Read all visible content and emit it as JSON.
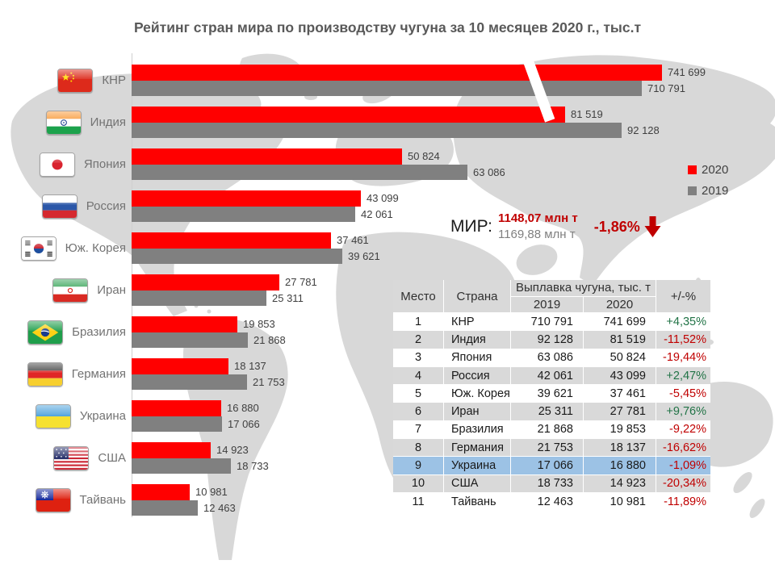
{
  "title": "Рейтинг стран мира по производству чугуна за 10 месяцев 2020 г., тыс.т",
  "colors": {
    "bar_2020": "#ff0000",
    "bar_2019": "#808080",
    "positive": "#217346",
    "negative": "#c00000",
    "highlight_row": "#9cc2e5",
    "map": "#d8d8d8"
  },
  "legend": {
    "items": [
      {
        "label": "2020",
        "color": "#ff0000"
      },
      {
        "label": "2019",
        "color": "#808080"
      }
    ]
  },
  "world": {
    "label": "МИР:",
    "v2020": "1148,07 млн т",
    "v2019": "1169,88 млн т",
    "change": "-1,86%",
    "direction": "down"
  },
  "chart_data": {
    "type": "bar",
    "orientation": "horizontal",
    "title": "Рейтинг стран мира по производству чугуна за 10 месяцев 2020 г., тыс.т",
    "unit": "тыс.т",
    "axis_break_on": "КНР",
    "legend_position": "right",
    "categories": [
      "КНР",
      "Индия",
      "Япония",
      "Россия",
      "Юж. Корея",
      "Иран",
      "Бразилия",
      "Германия",
      "Украина",
      "США",
      "Тайвань"
    ],
    "flags": [
      "china-flag-icon",
      "india-flag-icon",
      "japan-flag-icon",
      "russia-flag-icon",
      "south-korea-flag-icon",
      "iran-flag-icon",
      "brazil-flag-icon",
      "germany-flag-icon",
      "ukraine-flag-icon",
      "usa-flag-icon",
      "taiwan-flag-icon"
    ],
    "series": [
      {
        "name": "2020",
        "color": "#ff0000",
        "values": [
          741699,
          81519,
          50824,
          43099,
          37461,
          27781,
          19853,
          18137,
          16880,
          14923,
          10981
        ],
        "labels": [
          "741 699",
          "81 519",
          "50 824",
          "43 099",
          "37 461",
          "27 781",
          "19 853",
          "18 137",
          "16 880",
          "14 923",
          "10 981"
        ]
      },
      {
        "name": "2019",
        "color": "#808080",
        "values": [
          710791,
          92128,
          63086,
          42061,
          39621,
          25311,
          21868,
          21753,
          17066,
          18733,
          12463
        ],
        "labels": [
          "710 791",
          "92 128",
          "63 086",
          "42 061",
          "39 621",
          "25 311",
          "21 868",
          "21 753",
          "17 066",
          "18 733",
          "12 463"
        ]
      }
    ]
  },
  "table": {
    "type": "table",
    "headers": {
      "place": "Место",
      "country": "Страна",
      "group": "Выплавка чугуна, тыс. т",
      "col_2019": "2019",
      "col_2020": "2020",
      "change": "+/-%"
    },
    "rows": [
      {
        "place": "1",
        "country": "КНР",
        "v2019": "710 791",
        "v2020": "741 699",
        "change": "+4,35%",
        "highlight": false
      },
      {
        "place": "2",
        "country": "Индия",
        "v2019": "92 128",
        "v2020": "81 519",
        "change": "-11,52%",
        "highlight": false
      },
      {
        "place": "3",
        "country": "Япония",
        "v2019": "63 086",
        "v2020": "50 824",
        "change": "-19,44%",
        "highlight": false
      },
      {
        "place": "4",
        "country": "Россия",
        "v2019": "42 061",
        "v2020": "43 099",
        "change": "+2,47%",
        "highlight": false
      },
      {
        "place": "5",
        "country": "Юж. Корея",
        "v2019": "39 621",
        "v2020": "37 461",
        "change": "-5,45%",
        "highlight": false
      },
      {
        "place": "6",
        "country": "Иран",
        "v2019": "25 311",
        "v2020": "27 781",
        "change": "+9,76%",
        "highlight": false
      },
      {
        "place": "7",
        "country": "Бразилия",
        "v2019": "21 868",
        "v2020": "19 853",
        "change": "-9,22%",
        "highlight": false
      },
      {
        "place": "8",
        "country": "Германия",
        "v2019": "21 753",
        "v2020": "18 137",
        "change": "-16,62%",
        "highlight": false
      },
      {
        "place": "9",
        "country": "Украина",
        "v2019": "17 066",
        "v2020": "16 880",
        "change": "-1,09%",
        "highlight": true
      },
      {
        "place": "10",
        "country": "США",
        "v2019": "18 733",
        "v2020": "14 923",
        "change": "-20,34%",
        "highlight": false
      },
      {
        "place": "11",
        "country": "Тайвань",
        "v2019": "12 463",
        "v2020": "10 981",
        "change": "-11,89%",
        "highlight": false
      }
    ]
  }
}
